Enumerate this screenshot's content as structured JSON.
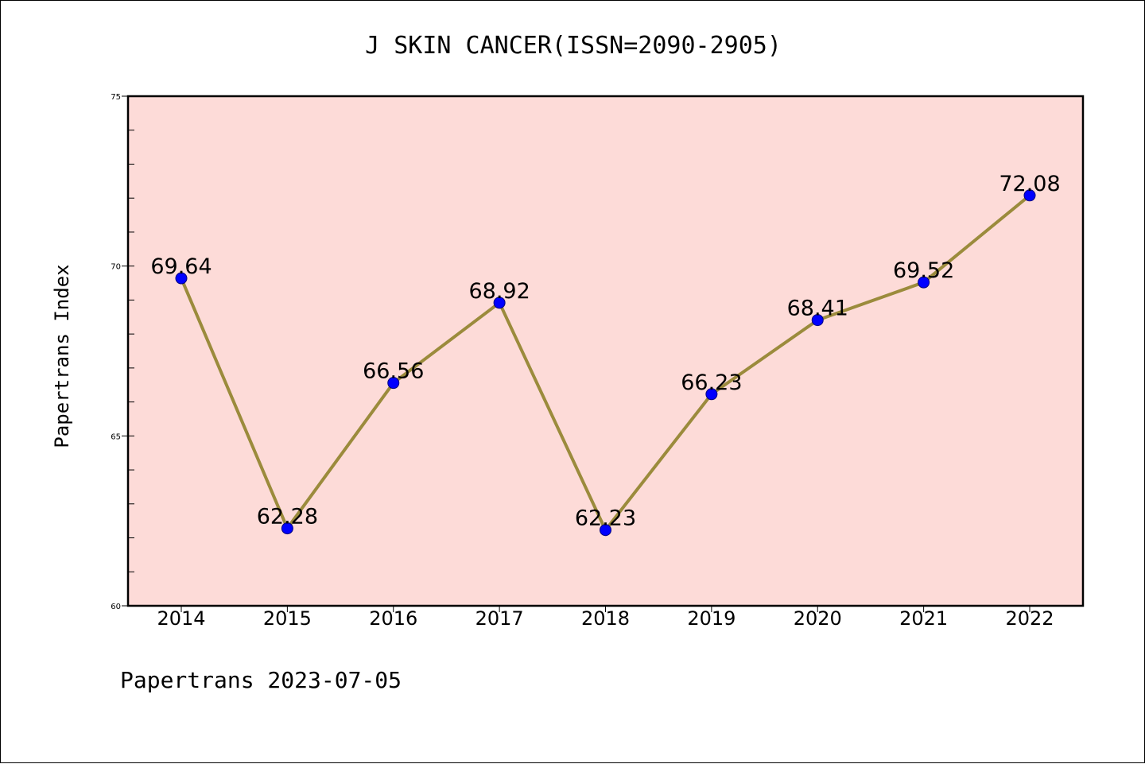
{
  "chart_data": {
    "type": "line",
    "title": "J SKIN CANCER(ISSN=2090-2905)",
    "xlabel": "",
    "ylabel": "Papertrans Index",
    "footer": "Papertrans 2023-07-05",
    "categories": [
      "2014",
      "2015",
      "2016",
      "2017",
      "2018",
      "2019",
      "2020",
      "2021",
      "2022"
    ],
    "values": [
      69.64,
      62.28,
      66.56,
      68.92,
      62.23,
      66.23,
      68.41,
      69.52,
      72.08
    ],
    "value_labels": [
      "69.64",
      "62.28",
      "66.56",
      "68.92",
      "62.23",
      "66.23",
      "68.41",
      "69.52",
      "72.08"
    ],
    "ylim": [
      60,
      75
    ],
    "yticks": [
      60,
      65,
      70,
      75
    ],
    "grid": false,
    "legend": "none",
    "colors": {
      "plot_background": "#fddbd8",
      "line": "#9b8b3c",
      "marker": "#0000ff",
      "marker_edge": "#000080"
    }
  }
}
